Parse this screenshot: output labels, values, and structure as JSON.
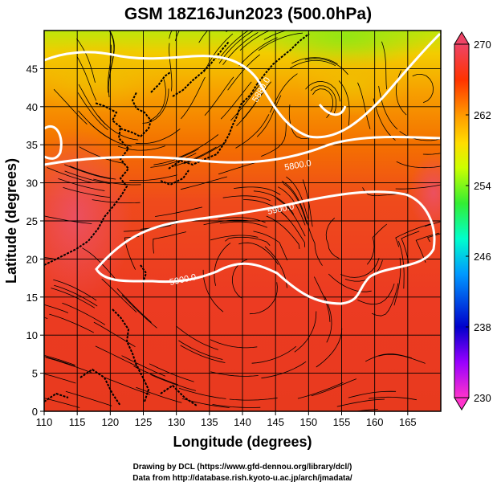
{
  "title": "GSM 18Z16Jun2023 (500.0hPa)",
  "xlabel": "Longitude (degrees)",
  "ylabel": "Latitude  (degrees)",
  "credits": [
    "Drawing by DCL (https://www.gfd-dennou.org/library/dcl/)",
    "Data from http://database.rish.kyoto-u.ac.jp/arch/jmadata/"
  ],
  "chart_data": {
    "type": "heatmap",
    "title": "GSM 18Z16Jun2023 (500.0hPa)",
    "xlabel": "Longitude (degrees)",
    "ylabel": "Latitude  (degrees)",
    "xlim": [
      110,
      170
    ],
    "ylim": [
      0,
      50
    ],
    "x_ticks": [
      110,
      115,
      120,
      125,
      130,
      135,
      140,
      145,
      150,
      155,
      160,
      165
    ],
    "y_ticks": [
      0,
      5,
      10,
      15,
      20,
      25,
      30,
      35,
      40,
      45
    ],
    "grid": true,
    "colorbar": {
      "range": [
        230,
        270
      ],
      "ticks": [
        230,
        238,
        246,
        254,
        262,
        270
      ],
      "colors": [
        "#ff33cc",
        "#9900ff",
        "#0000cc",
        "#0099ff",
        "#00ffcc",
        "#33ee33",
        "#ccff00",
        "#ffdd00",
        "#ff9900",
        "#ff3300",
        "#ee4466"
      ]
    },
    "contour_labels": [
      "5800.0",
      "5900.0",
      "5880.0",
      "5760.0"
    ],
    "overlays": [
      "coastlines",
      "streamlines"
    ]
  }
}
